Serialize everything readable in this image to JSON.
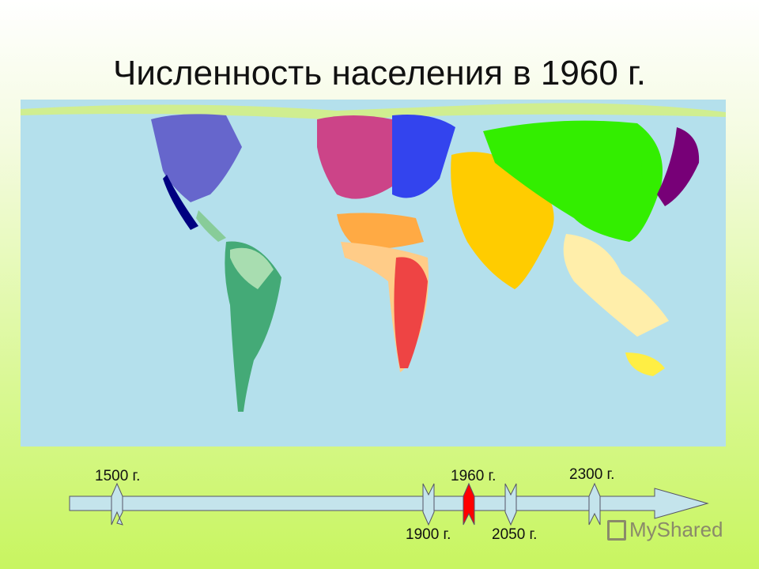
{
  "slide": {
    "title": "Численность населения в 1960 г."
  },
  "timeline": {
    "markers": [
      {
        "label": "1500 г.",
        "active": false
      },
      {
        "label": "1900 г.",
        "active": false
      },
      {
        "label": "1960 г.",
        "active": true
      },
      {
        "label": "2050 г.",
        "active": false
      },
      {
        "label": "2300 г.",
        "active": false
      }
    ],
    "colors": {
      "bar": "#c4e4ec",
      "active": "#ff0000"
    }
  },
  "watermark": "MyShared",
  "map": {
    "colors": {
      "ocean": "#b4e0ec",
      "china": "#33ee00",
      "india": "#ffcc00",
      "europe": "#cc4488",
      "russia": "#3344ee",
      "americas_north": "#6666cc",
      "americas_south": "#44aa77",
      "africa": "#ee7766",
      "japan": "#770077"
    }
  }
}
